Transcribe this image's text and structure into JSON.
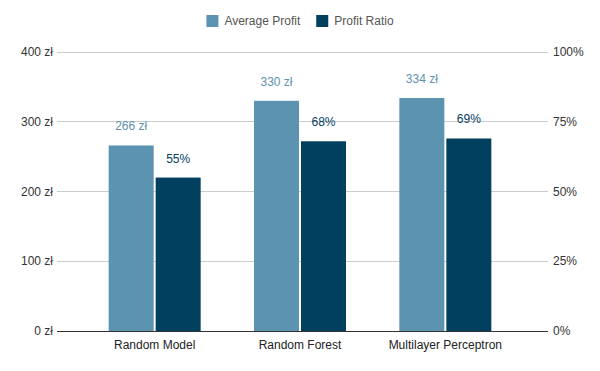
{
  "chart_data": {
    "type": "bar",
    "categories": [
      "Random Model",
      "Random Forest",
      "Multilayer Perceptron"
    ],
    "series": [
      {
        "name": "Average Profit",
        "color": "#5b93b0",
        "values": [
          266,
          330,
          334
        ],
        "value_labels": [
          "266 zł",
          "330 zł",
          "334 zł"
        ]
      },
      {
        "name": "Profit Ratio",
        "color": "#02405f",
        "values": [
          55,
          68,
          69
        ],
        "value_labels": [
          "55%",
          "68%",
          "69%"
        ],
        "axis": "y2"
      }
    ],
    "ylim": [
      0,
      400
    ],
    "yticks": [
      {
        "value": 0,
        "label": "0 zł"
      },
      {
        "value": 100,
        "label": "100 zł"
      },
      {
        "value": 200,
        "label": "200 zł"
      },
      {
        "value": 300,
        "label": "300 zł"
      },
      {
        "value": 400,
        "label": "400 zł"
      }
    ],
    "y2lim": [
      0,
      100
    ],
    "y2ticks": [
      {
        "value": 0,
        "label": "0%"
      },
      {
        "value": 25,
        "label": "25%"
      },
      {
        "value": 50,
        "label": "50%"
      },
      {
        "value": 75,
        "label": "75%"
      },
      {
        "value": 100,
        "label": "100%"
      }
    ],
    "grid": true,
    "legend": "top",
    "data_labels": true
  }
}
